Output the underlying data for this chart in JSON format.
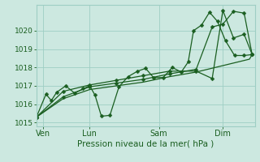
{
  "background_color": "#cce8e0",
  "grid_color": "#9ecec4",
  "line_color": "#1a5e20",
  "xlabel": "Pression niveau de la mer( hPa )",
  "ylim": [
    1014.8,
    1021.4
  ],
  "yticks": [
    1015,
    1016,
    1017,
    1018,
    1019,
    1020
  ],
  "x_tick_positions": [
    0.12,
    1.0,
    2.3,
    3.5
  ],
  "x_tick_labels": [
    "Ven",
    "Lun",
    "Sam",
    "Dim"
  ],
  "xlim": [
    0.0,
    4.1
  ],
  "series1": {
    "x": [
      0.0,
      0.18,
      0.28,
      0.38,
      0.55,
      0.72,
      0.88,
      1.0,
      1.1,
      1.22,
      1.38,
      1.55,
      1.72,
      1.9,
      2.05,
      2.2,
      2.38,
      2.55,
      2.72,
      2.85,
      2.95,
      3.1,
      3.25,
      3.4,
      3.55,
      3.72,
      3.9,
      4.05
    ],
    "y": [
      1015.3,
      1016.55,
      1016.2,
      1016.65,
      1017.0,
      1016.6,
      1016.85,
      1017.0,
      1016.5,
      1015.35,
      1015.4,
      1016.95,
      1017.5,
      1017.8,
      1017.95,
      1017.45,
      1017.45,
      1018.0,
      1017.75,
      1018.3,
      1020.0,
      1020.3,
      1021.0,
      1020.5,
      1019.45,
      1018.65,
      1018.65,
      1018.7
    ]
  },
  "series2": {
    "x": [
      0.0,
      0.5,
      1.0,
      1.5,
      2.0,
      2.5,
      3.0,
      3.3,
      3.5,
      3.7,
      3.9,
      4.05
    ],
    "y": [
      1015.3,
      1016.4,
      1016.95,
      1017.15,
      1017.35,
      1017.65,
      1017.9,
      1020.2,
      1020.35,
      1021.05,
      1020.95,
      1018.7
    ]
  },
  "series3": {
    "x": [
      0.0,
      0.5,
      1.0,
      1.5,
      2.0,
      2.5,
      3.0,
      3.5,
      4.0,
      4.05
    ],
    "y": [
      1015.3,
      1016.3,
      1016.8,
      1017.0,
      1017.2,
      1017.5,
      1017.75,
      1018.1,
      1018.45,
      1018.7
    ]
  },
  "series4": {
    "x": [
      0.0,
      0.5,
      1.0,
      1.5,
      2.0,
      2.5,
      3.0,
      3.3,
      3.5,
      3.7,
      3.9,
      4.05
    ],
    "y": [
      1015.3,
      1016.7,
      1017.05,
      1017.3,
      1017.55,
      1017.8,
      1017.8,
      1017.4,
      1021.1,
      1019.6,
      1019.8,
      1018.7
    ]
  }
}
